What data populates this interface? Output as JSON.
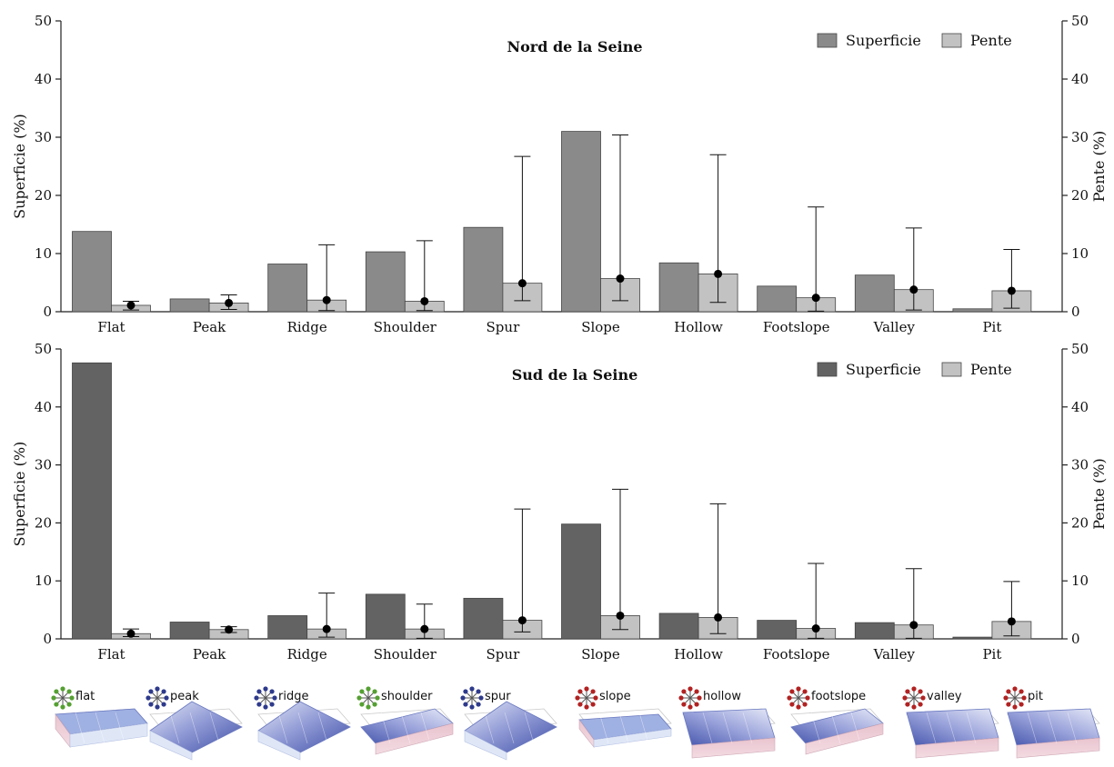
{
  "chart_data": [
    {
      "type": "bar",
      "title": "Nord de la Seine",
      "ylabel": "Superficie (%)",
      "y2label": "Pente (%)",
      "ylim": [
        0,
        50
      ],
      "y2lim": [
        0,
        50
      ],
      "yticks": [
        0,
        10,
        20,
        30,
        40,
        50
      ],
      "legend_position": "top-right",
      "categories": [
        "Flat",
        "Peak",
        "Ridge",
        "Shoulder",
        "Spur",
        "Slope",
        "Hollow",
        "Footslope",
        "Valley",
        "Pit"
      ],
      "series": [
        {
          "name": "Superficie",
          "color": "#8a8a8a",
          "values": [
            13.8,
            2.2,
            8.2,
            10.3,
            14.5,
            31.0,
            8.4,
            4.4,
            6.3,
            0.5
          ]
        },
        {
          "name": "Pente",
          "color": "#c2c2c2",
          "values": [
            1.1,
            1.5,
            2.0,
            1.8,
            4.9,
            5.7,
            6.5,
            2.4,
            3.8,
            3.6
          ],
          "error_low": [
            0.3,
            0.4,
            0.2,
            0.2,
            1.9,
            1.9,
            1.6,
            0.1,
            0.3,
            0.6
          ],
          "error_high": [
            1.8,
            2.9,
            11.5,
            12.2,
            26.7,
            30.4,
            27.0,
            18.0,
            14.4,
            10.7
          ]
        }
      ]
    },
    {
      "type": "bar",
      "title": "Sud de la Seine",
      "ylabel": "Superficie (%)",
      "y2label": "Pente (%)",
      "ylim": [
        0,
        50
      ],
      "y2lim": [
        0,
        50
      ],
      "yticks": [
        0,
        10,
        20,
        30,
        40,
        50
      ],
      "legend_position": "top-right",
      "categories": [
        "Flat",
        "Peak",
        "Ridge",
        "Shoulder",
        "Spur",
        "Slope",
        "Hollow",
        "Footslope",
        "Valley",
        "Pit"
      ],
      "series": [
        {
          "name": "Superficie",
          "color": "#636363",
          "values": [
            47.6,
            2.9,
            4.0,
            7.7,
            7.0,
            19.8,
            4.4,
            3.2,
            2.8,
            0.3
          ]
        },
        {
          "name": "Pente",
          "color": "#c2c2c2",
          "values": [
            0.9,
            1.6,
            1.7,
            1.7,
            3.2,
            4.0,
            3.7,
            1.8,
            2.4,
            3.0
          ],
          "error_low": [
            0.4,
            1.1,
            0.3,
            0.1,
            1.2,
            1.6,
            0.9,
            0.1,
            0.1,
            0.5
          ],
          "error_high": [
            1.7,
            2.1,
            7.9,
            6.0,
            22.4,
            25.8,
            23.3,
            13.0,
            12.1,
            9.9
          ]
        }
      ]
    }
  ],
  "glyphs": [
    {
      "label": "flat",
      "node_color": "#55a032",
      "surface": "flat"
    },
    {
      "label": "peak",
      "node_color": "#2e3a8c",
      "surface": "peak"
    },
    {
      "label": "ridge",
      "node_color": "#2e3a8c",
      "surface": "ridge"
    },
    {
      "label": "shoulder",
      "node_color": "#55a032",
      "surface": "shoulder"
    },
    {
      "label": "spur",
      "node_color": "#2e3a8c",
      "surface": "spur"
    },
    {
      "label": "slope",
      "node_color": "#b22222",
      "surface": "slope"
    },
    {
      "label": "hollow",
      "node_color": "#b22222",
      "surface": "hollow"
    },
    {
      "label": "footslope",
      "node_color": "#b22222",
      "surface": "footslope"
    },
    {
      "label": "valley",
      "node_color": "#b22222",
      "surface": "valley"
    },
    {
      "label": "pit",
      "node_color": "#b22222",
      "surface": "pit"
    }
  ]
}
